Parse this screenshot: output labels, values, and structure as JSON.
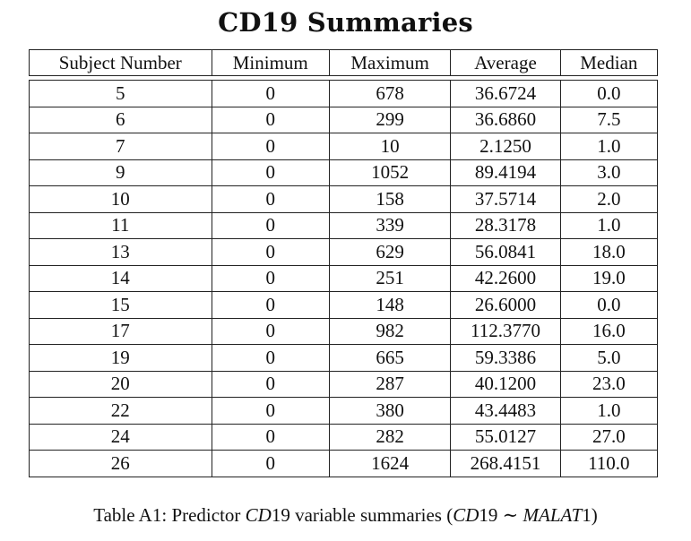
{
  "title": "CD19 Summaries",
  "columns": [
    "Subject Number",
    "Minimum",
    "Maximum",
    "Average",
    "Median"
  ],
  "rows": [
    [
      "5",
      "0",
      "678",
      "36.6724",
      "0.0"
    ],
    [
      "6",
      "0",
      "299",
      "36.6860",
      "7.5"
    ],
    [
      "7",
      "0",
      "10",
      "2.1250",
      "1.0"
    ],
    [
      "9",
      "0",
      "1052",
      "89.4194",
      "3.0"
    ],
    [
      "10",
      "0",
      "158",
      "37.5714",
      "2.0"
    ],
    [
      "11",
      "0",
      "339",
      "28.3178",
      "1.0"
    ],
    [
      "13",
      "0",
      "629",
      "56.0841",
      "18.0"
    ],
    [
      "14",
      "0",
      "251",
      "42.2600",
      "19.0"
    ],
    [
      "15",
      "0",
      "148",
      "26.6000",
      "0.0"
    ],
    [
      "17",
      "0",
      "982",
      "112.3770",
      "16.0"
    ],
    [
      "19",
      "0",
      "665",
      "59.3386",
      "5.0"
    ],
    [
      "20",
      "0",
      "287",
      "40.1200",
      "23.0"
    ],
    [
      "22",
      "0",
      "380",
      "43.4483",
      "1.0"
    ],
    [
      "24",
      "0",
      "282",
      "55.0127",
      "27.0"
    ],
    [
      "26",
      "0",
      "1624",
      "268.4151",
      "110.0"
    ]
  ],
  "caption": {
    "label": "Table A1:",
    "text_before": "Predictor",
    "var1": "CD",
    "var1_num": "19",
    "text_middle": "variable summaries (",
    "var2": "CD",
    "var2_num": "19",
    "tilde": "∼",
    "var3": "MALAT",
    "var3_num": "1",
    "close": ")"
  }
}
